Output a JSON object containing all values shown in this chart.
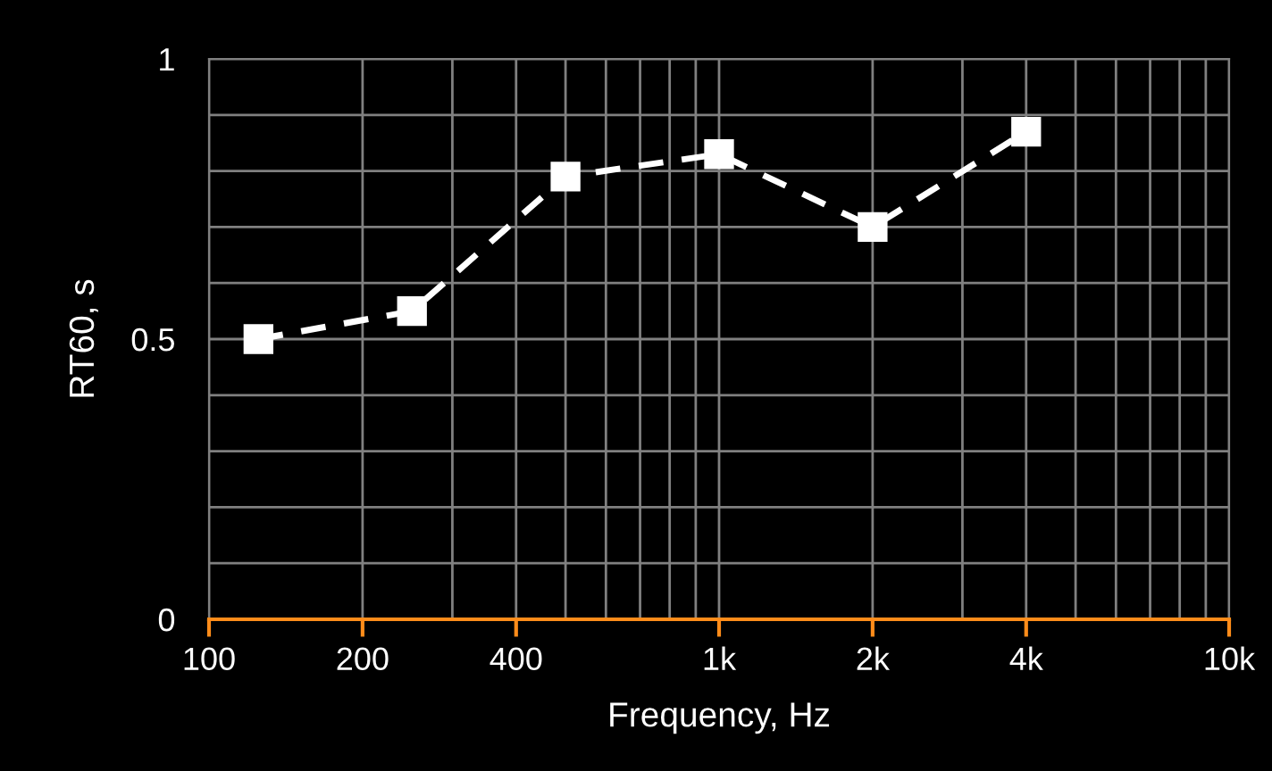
{
  "chart_data": {
    "type": "line",
    "xlabel": "Frequency, Hz",
    "ylabel": "RT60, s",
    "x": [
      125,
      250,
      500,
      1000,
      2000,
      4000
    ],
    "series": [
      {
        "color": "#ffffff",
        "values": [
          0.5,
          0.55,
          0.79,
          0.83,
          0.7,
          0.87
        ]
      }
    ],
    "log": "x",
    "xlim": [
      100,
      10000
    ],
    "xticks": [
      100,
      {
        "value": 200,
        "label": "200"
      },
      {
        "value": 300,
        "label": null
      },
      {
        "value": 400,
        "label": "400"
      },
      {
        "value": 500,
        "label": null
      },
      {
        "value": 600,
        "label": null
      },
      {
        "value": 700,
        "label": null
      },
      {
        "value": 800,
        "label": null
      },
      {
        "value": 900,
        "label": null
      },
      {
        "value": 1000,
        "label": "1k"
      },
      {
        "value": 2000,
        "label": "2k"
      },
      {
        "value": 3000,
        "label": null
      },
      {
        "value": 4000,
        "label": "4k"
      },
      {
        "value": 5000,
        "label": null
      },
      {
        "value": 6000,
        "label": null
      },
      {
        "value": 7000,
        "label": null
      },
      {
        "value": 8000,
        "label": null
      },
      {
        "value": 9000,
        "label": null
      },
      {
        "value": 10000,
        "label": "10k"
      }
    ],
    "ylim": [
      0,
      1
    ],
    "yticks": [
      0,
      {
        "value": 0.1,
        "label": null
      },
      {
        "value": 0.2,
        "label": null
      },
      {
        "value": 0.3,
        "label": null
      },
      {
        "value": 0.4,
        "label": null
      },
      0.5,
      {
        "value": 0.6,
        "label": null
      },
      {
        "value": 0.7,
        "label": null
      },
      {
        "value": 0.8,
        "label": null
      },
      {
        "value": 0.9,
        "label": null
      },
      1
    ],
    "grid": true,
    "marker": "square",
    "line_style": "dashed",
    "legend": false
  }
}
